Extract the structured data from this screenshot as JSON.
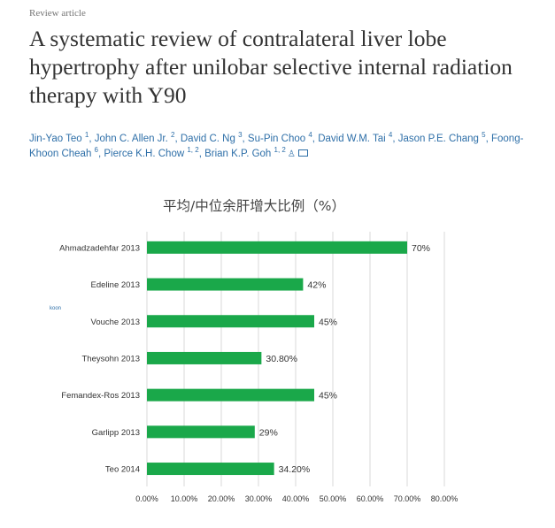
{
  "article": {
    "type": "Review article",
    "title": "A systematic review of contralateral liver lobe hypertrophy after unilobar selective internal radiation therapy with Y90",
    "authors": [
      {
        "name": "Jin-Yao Teo",
        "sup": "1"
      },
      {
        "name": "John C. Allen Jr.",
        "sup": "2"
      },
      {
        "name": "David C. Ng",
        "sup": "3"
      },
      {
        "name": "Su-Pin Choo",
        "sup": "4"
      },
      {
        "name": "David W.M. Tai",
        "sup": "4"
      },
      {
        "name": "Jason P.E. Chang",
        "sup": "5"
      },
      {
        "name": "Foong-Khoon Cheah",
        "sup": "6"
      },
      {
        "name": "Pierce K.H. Chow",
        "sup": "1, 2"
      },
      {
        "name": "Brian K.P. Goh",
        "sup": "1, 2"
      }
    ],
    "side_fragment": "koon"
  },
  "icons": {
    "author_profile": "person-icon",
    "author_email": "envelope-icon"
  },
  "chart_data": {
    "type": "bar",
    "orientation": "horizontal",
    "title": "平均/中位余肝增大比例（%）",
    "categories": [
      "Ahmadzadehfar 2013",
      "Edeline 2013",
      "Vouche 2013",
      "Theysohn 2013",
      "Femandex-Ros 2013",
      "Garlipp 2013",
      "Teo 2014"
    ],
    "values": [
      70,
      42,
      45,
      30.8,
      45,
      29,
      34.2
    ],
    "value_labels": [
      "70%",
      "42%",
      "45%",
      "30.80%",
      "45%",
      "29%",
      "34.20%"
    ],
    "xlim": [
      0,
      80
    ],
    "xticks": [
      "0.00%",
      "10.00%",
      "20.00%",
      "30.00%",
      "40.00%",
      "50.00%",
      "60.00%",
      "70.00%",
      "80.00%"
    ],
    "grid": true,
    "bar_color": "#1aa84a",
    "grid_color": "#d9d9d9"
  }
}
